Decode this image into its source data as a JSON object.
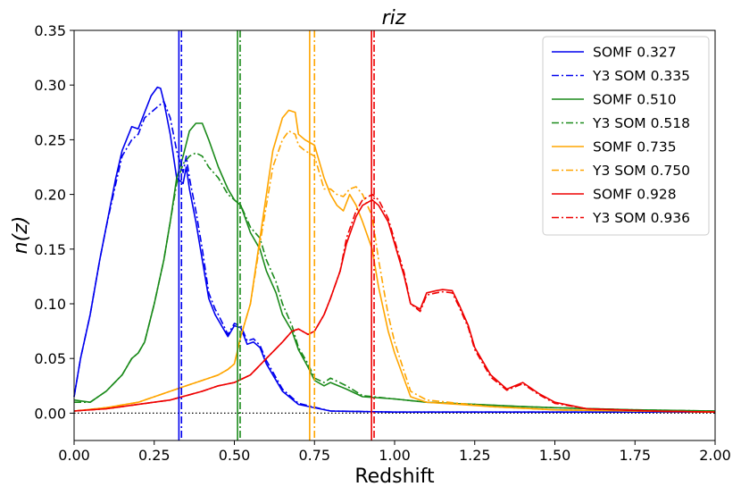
{
  "chart_data": {
    "type": "line",
    "title": "riz",
    "xlabel": "Redshift",
    "ylabel": "n(z)",
    "xlim": [
      0.0,
      2.0
    ],
    "ylim": [
      -0.025,
      0.35
    ],
    "xticks": [
      "0.00",
      "0.25",
      "0.50",
      "0.75",
      "1.00",
      "1.25",
      "1.50",
      "1.75",
      "2.00"
    ],
    "yticks": [
      "0.00",
      "0.05",
      "0.10",
      "0.15",
      "0.20",
      "0.25",
      "0.30",
      "0.35"
    ],
    "grid": false,
    "legend_position": "top-right",
    "zero_line": {
      "y": 0.0,
      "style": "dotted",
      "color": "#000000"
    },
    "series": [
      {
        "name": "SOMF 0.327",
        "color": "#0000ee",
        "style": "solid",
        "mean": 0.327,
        "x": [
          0.0,
          0.02,
          0.05,
          0.08,
          0.1,
          0.13,
          0.15,
          0.18,
          0.2,
          0.22,
          0.24,
          0.26,
          0.27,
          0.28,
          0.3,
          0.32,
          0.34,
          0.35,
          0.36,
          0.37,
          0.38,
          0.4,
          0.42,
          0.44,
          0.45,
          0.48,
          0.5,
          0.52,
          0.54,
          0.56,
          0.58,
          0.6,
          0.65,
          0.7,
          0.8,
          1.0,
          1.5,
          2.0
        ],
        "y": [
          0.015,
          0.05,
          0.09,
          0.14,
          0.17,
          0.215,
          0.24,
          0.262,
          0.26,
          0.275,
          0.29,
          0.298,
          0.297,
          0.285,
          0.255,
          0.215,
          0.21,
          0.225,
          0.205,
          0.19,
          0.175,
          0.14,
          0.105,
          0.09,
          0.085,
          0.07,
          0.08,
          0.078,
          0.063,
          0.065,
          0.06,
          0.045,
          0.02,
          0.008,
          0.002,
          0.001,
          0.001,
          0.001
        ]
      },
      {
        "name": "Y3 SOM 0.335",
        "color": "#0000ee",
        "style": "dashdot",
        "mean": 0.335,
        "x": [
          0.0,
          0.02,
          0.05,
          0.08,
          0.1,
          0.13,
          0.15,
          0.18,
          0.2,
          0.22,
          0.24,
          0.26,
          0.28,
          0.3,
          0.32,
          0.34,
          0.35,
          0.36,
          0.37,
          0.38,
          0.4,
          0.42,
          0.44,
          0.45,
          0.48,
          0.5,
          0.52,
          0.54,
          0.56,
          0.58,
          0.6,
          0.65,
          0.7,
          0.8,
          1.0,
          1.5,
          2.0
        ],
        "y": [
          0.015,
          0.05,
          0.09,
          0.14,
          0.17,
          0.21,
          0.235,
          0.25,
          0.255,
          0.27,
          0.275,
          0.28,
          0.285,
          0.27,
          0.24,
          0.22,
          0.235,
          0.215,
          0.2,
          0.185,
          0.15,
          0.11,
          0.095,
          0.09,
          0.072,
          0.082,
          0.08,
          0.066,
          0.068,
          0.062,
          0.048,
          0.022,
          0.009,
          0.002,
          0.001,
          0.001,
          0.001
        ]
      },
      {
        "name": "SOMF 0.510",
        "color": "#1a8a1a",
        "style": "solid",
        "mean": 0.51,
        "x": [
          0.0,
          0.05,
          0.1,
          0.15,
          0.18,
          0.2,
          0.22,
          0.25,
          0.28,
          0.3,
          0.32,
          0.34,
          0.36,
          0.38,
          0.4,
          0.42,
          0.45,
          0.48,
          0.5,
          0.52,
          0.55,
          0.58,
          0.6,
          0.63,
          0.65,
          0.68,
          0.7,
          0.73,
          0.75,
          0.78,
          0.8,
          0.85,
          0.9,
          1.0,
          1.1,
          1.25,
          1.4,
          1.5,
          1.75,
          2.0
        ],
        "y": [
          0.012,
          0.01,
          0.02,
          0.035,
          0.05,
          0.055,
          0.065,
          0.1,
          0.14,
          0.175,
          0.215,
          0.235,
          0.258,
          0.265,
          0.265,
          0.25,
          0.225,
          0.205,
          0.195,
          0.19,
          0.165,
          0.15,
          0.13,
          0.11,
          0.09,
          0.075,
          0.058,
          0.042,
          0.03,
          0.025,
          0.028,
          0.022,
          0.015,
          0.013,
          0.01,
          0.008,
          0.006,
          0.005,
          0.003,
          0.002
        ]
      },
      {
        "name": "Y3 SOM 0.518",
        "color": "#1a8a1a",
        "style": "dashdot",
        "mean": 0.518,
        "x": [
          0.0,
          0.05,
          0.1,
          0.15,
          0.18,
          0.2,
          0.22,
          0.25,
          0.28,
          0.3,
          0.32,
          0.34,
          0.36,
          0.38,
          0.4,
          0.42,
          0.45,
          0.48,
          0.5,
          0.52,
          0.55,
          0.58,
          0.6,
          0.63,
          0.65,
          0.68,
          0.7,
          0.73,
          0.75,
          0.78,
          0.8,
          0.85,
          0.9,
          1.0,
          1.1,
          1.25,
          1.4,
          1.5,
          1.75,
          2.0
        ],
        "y": [
          0.01,
          0.01,
          0.02,
          0.035,
          0.05,
          0.055,
          0.065,
          0.1,
          0.14,
          0.175,
          0.21,
          0.228,
          0.235,
          0.238,
          0.235,
          0.225,
          0.215,
          0.2,
          0.195,
          0.19,
          0.17,
          0.16,
          0.14,
          0.12,
          0.1,
          0.08,
          0.06,
          0.045,
          0.032,
          0.028,
          0.032,
          0.025,
          0.016,
          0.013,
          0.01,
          0.008,
          0.006,
          0.005,
          0.003,
          0.002
        ]
      },
      {
        "name": "SOMF 0.735",
        "color": "#ffa500",
        "style": "solid",
        "mean": 0.735,
        "x": [
          0.0,
          0.1,
          0.2,
          0.3,
          0.35,
          0.4,
          0.45,
          0.48,
          0.5,
          0.52,
          0.55,
          0.58,
          0.6,
          0.62,
          0.65,
          0.67,
          0.69,
          0.7,
          0.72,
          0.75,
          0.78,
          0.8,
          0.82,
          0.84,
          0.86,
          0.88,
          0.9,
          0.93,
          0.95,
          0.98,
          1.0,
          1.05,
          1.1,
          1.2,
          1.3,
          1.5,
          2.0
        ],
        "y": [
          0.002,
          0.005,
          0.01,
          0.02,
          0.025,
          0.03,
          0.035,
          0.04,
          0.045,
          0.07,
          0.1,
          0.16,
          0.2,
          0.24,
          0.27,
          0.277,
          0.275,
          0.255,
          0.25,
          0.245,
          0.215,
          0.2,
          0.19,
          0.185,
          0.2,
          0.19,
          0.175,
          0.15,
          0.115,
          0.075,
          0.055,
          0.015,
          0.01,
          0.008,
          0.006,
          0.003,
          0.001
        ]
      },
      {
        "name": "Y3 SOM 0.750",
        "color": "#ffa500",
        "style": "dashdot",
        "mean": 0.75,
        "x": [
          0.0,
          0.1,
          0.2,
          0.3,
          0.35,
          0.4,
          0.45,
          0.48,
          0.5,
          0.52,
          0.55,
          0.58,
          0.6,
          0.62,
          0.65,
          0.67,
          0.69,
          0.7,
          0.72,
          0.75,
          0.78,
          0.8,
          0.82,
          0.84,
          0.86,
          0.88,
          0.9,
          0.93,
          0.95,
          0.98,
          1.0,
          1.05,
          1.1,
          1.2,
          1.3,
          1.5,
          2.0
        ],
        "y": [
          0.002,
          0.005,
          0.01,
          0.02,
          0.025,
          0.03,
          0.035,
          0.04,
          0.045,
          0.07,
          0.1,
          0.155,
          0.19,
          0.225,
          0.25,
          0.258,
          0.255,
          0.245,
          0.24,
          0.235,
          0.205,
          0.205,
          0.2,
          0.198,
          0.205,
          0.207,
          0.2,
          0.18,
          0.14,
          0.09,
          0.065,
          0.02,
          0.012,
          0.009,
          0.006,
          0.003,
          0.001
        ]
      },
      {
        "name": "SOMF 0.928",
        "color": "#ee0000",
        "style": "solid",
        "mean": 0.928,
        "x": [
          0.0,
          0.1,
          0.2,
          0.3,
          0.4,
          0.45,
          0.5,
          0.55,
          0.6,
          0.65,
          0.68,
          0.7,
          0.73,
          0.75,
          0.78,
          0.8,
          0.83,
          0.85,
          0.88,
          0.9,
          0.93,
          0.95,
          0.98,
          1.0,
          1.03,
          1.05,
          1.08,
          1.1,
          1.13,
          1.15,
          1.18,
          1.2,
          1.23,
          1.25,
          1.3,
          1.35,
          1.4,
          1.45,
          1.5,
          1.6,
          1.7,
          1.8,
          2.0
        ],
        "y": [
          0.002,
          0.004,
          0.008,
          0.012,
          0.02,
          0.025,
          0.028,
          0.035,
          0.05,
          0.065,
          0.075,
          0.077,
          0.072,
          0.075,
          0.09,
          0.105,
          0.13,
          0.155,
          0.18,
          0.19,
          0.195,
          0.19,
          0.175,
          0.155,
          0.125,
          0.1,
          0.095,
          0.11,
          0.112,
          0.113,
          0.112,
          0.1,
          0.08,
          0.06,
          0.035,
          0.022,
          0.028,
          0.018,
          0.01,
          0.004,
          0.003,
          0.002,
          0.001
        ]
      },
      {
        "name": "Y3 SOM 0.936",
        "color": "#ee0000",
        "style": "dashdot",
        "mean": 0.936,
        "x": [
          0.0,
          0.1,
          0.2,
          0.3,
          0.4,
          0.45,
          0.5,
          0.55,
          0.6,
          0.65,
          0.68,
          0.7,
          0.73,
          0.75,
          0.78,
          0.8,
          0.83,
          0.85,
          0.88,
          0.9,
          0.93,
          0.95,
          0.98,
          1.0,
          1.03,
          1.05,
          1.08,
          1.1,
          1.13,
          1.15,
          1.18,
          1.2,
          1.23,
          1.25,
          1.3,
          1.35,
          1.4,
          1.45,
          1.5,
          1.6,
          1.7,
          1.8,
          2.0
        ],
        "y": [
          0.002,
          0.004,
          0.008,
          0.012,
          0.02,
          0.025,
          0.028,
          0.035,
          0.05,
          0.065,
          0.075,
          0.077,
          0.072,
          0.075,
          0.09,
          0.105,
          0.13,
          0.16,
          0.185,
          0.195,
          0.2,
          0.195,
          0.178,
          0.158,
          0.128,
          0.1,
          0.093,
          0.108,
          0.11,
          0.111,
          0.11,
          0.098,
          0.078,
          0.058,
          0.033,
          0.021,
          0.027,
          0.017,
          0.009,
          0.004,
          0.003,
          0.002,
          0.001
        ]
      }
    ]
  }
}
